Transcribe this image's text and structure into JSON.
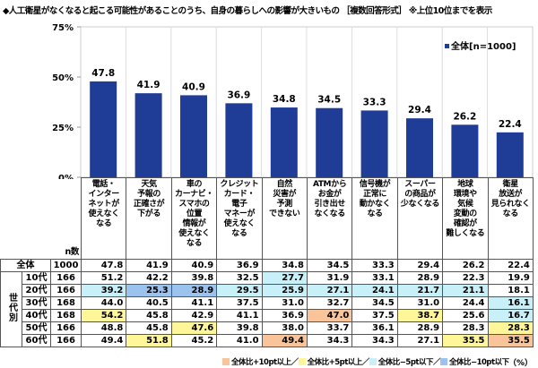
{
  "title": "◆人工衛星がなくなると起こる可能性があることのうち、自身の暮らしへの影響が大きいもの ［複数回答形式］ ※上位10位までを表示",
  "chart_data": {
    "type": "bar",
    "categories": [
      "電話・\nインター\nネットが\n使えなく\nなる",
      "天気\n予報の\n正確さが\n下がる",
      "車の\nカーナビ・\nスマホの\n位置\n情報が\n使えなく\nなる",
      "クレジット\nカード・\n電子\nマネーが\n使えなく\nなる",
      "自然\n災害が\n予測\nできない",
      "ATMから\nお金が\n引き出せ\nなくなる",
      "信号機が\n正常に\n動かなく\nなる",
      "スーパー\nの商品が\n少なくなる",
      "地球\n環境や\n気候\n変動の\n確認が\n難しくなる",
      "衛星\n放送が\n見られなく\nなる"
    ],
    "series": [
      {
        "name": "全体[n=1000]",
        "values": [
          47.8,
          41.9,
          40.9,
          36.9,
          34.8,
          34.5,
          33.3,
          29.4,
          26.2,
          22.4
        ],
        "color": "#1f3c96"
      }
    ],
    "yticks": [
      "0%",
      "25%",
      "50%",
      "75%"
    ],
    "ylim": [
      0,
      75
    ],
    "grid": "vertical",
    "legend": "top-right",
    "table": {
      "n_header": "n数",
      "group_label": "世代別",
      "rows": [
        {
          "label": "全体",
          "n": "1000",
          "values": [
            "47.8",
            "41.9",
            "40.9",
            "36.9",
            "34.8",
            "34.5",
            "33.3",
            "29.4",
            "26.2",
            "22.4"
          ],
          "marks": [
            "",
            "",
            "",
            "",
            "",
            "",
            "",
            "",
            "",
            ""
          ]
        },
        {
          "label": "10代",
          "n": "166",
          "values": [
            "51.2",
            "42.2",
            "39.8",
            "32.5",
            "27.7",
            "31.9",
            "33.1",
            "28.9",
            "22.3",
            "19.9"
          ],
          "marks": [
            "",
            "",
            "",
            "",
            "m5",
            "",
            "",
            "",
            "",
            ""
          ]
        },
        {
          "label": "20代",
          "n": "166",
          "values": [
            "39.2",
            "25.3",
            "28.9",
            "29.5",
            "25.9",
            "27.1",
            "24.1",
            "21.7",
            "21.1",
            "18.1"
          ],
          "marks": [
            "m5",
            "m10",
            "m10",
            "m5",
            "m5",
            "m5",
            "m5",
            "m5",
            "m5",
            ""
          ]
        },
        {
          "label": "30代",
          "n": "168",
          "values": [
            "44.0",
            "40.5",
            "41.1",
            "37.5",
            "31.0",
            "32.7",
            "34.5",
            "31.0",
            "24.4",
            "16.1"
          ],
          "marks": [
            "",
            "",
            "",
            "",
            "",
            "",
            "",
            "",
            "",
            "m5"
          ]
        },
        {
          "label": "40代",
          "n": "168",
          "values": [
            "54.2",
            "45.8",
            "42.9",
            "41.1",
            "36.9",
            "47.0",
            "37.5",
            "38.7",
            "25.6",
            "16.7"
          ],
          "marks": [
            "p5",
            "",
            "",
            "",
            "",
            "o10",
            "",
            "p5",
            "",
            "m5"
          ]
        },
        {
          "label": "50代",
          "n": "166",
          "values": [
            "48.8",
            "45.8",
            "47.6",
            "39.8",
            "38.0",
            "33.7",
            "36.1",
            "28.9",
            "28.3",
            "28.3"
          ],
          "marks": [
            "",
            "",
            "p5",
            "",
            "",
            "",
            "",
            "",
            "",
            "p5"
          ]
        },
        {
          "label": "60代",
          "n": "166",
          "values": [
            "49.4",
            "51.8",
            "45.2",
            "41.0",
            "49.4",
            "34.3",
            "34.3",
            "27.1",
            "35.5",
            "35.5"
          ],
          "marks": [
            "",
            "p5",
            "",
            "",
            "o10",
            "",
            "",
            "",
            "p5",
            "o10"
          ]
        }
      ]
    },
    "legend_items": [
      {
        "key": "o10",
        "label": "全体比+10pt以上／",
        "color": "#f9c49a"
      },
      {
        "key": "p5",
        "label": "全体比+5pt以上／",
        "color": "#fff599"
      },
      {
        "key": "m5",
        "label": "全体比−5pt以下／",
        "color": "#c8f0f8"
      },
      {
        "key": "m10",
        "label": "全体比−10pt以下",
        "color": "#9cc3ee"
      }
    ],
    "unit": "（%）"
  }
}
